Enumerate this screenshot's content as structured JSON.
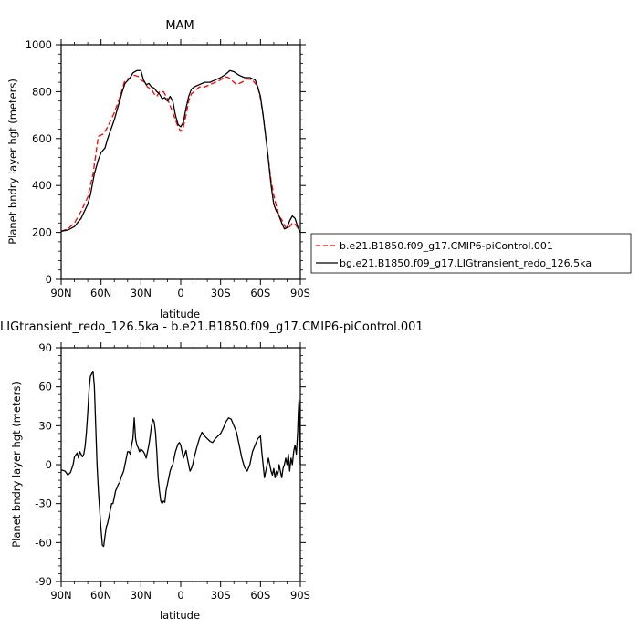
{
  "chart_data": [
    {
      "type": "line",
      "title": "MAM",
      "xlabel": "latitude",
      "ylabel": "Planet bndry layer hgt (meters)",
      "xlim": [
        90,
        -90
      ],
      "ylim": [
        0,
        1000
      ],
      "y_ticks": [
        0,
        200,
        400,
        600,
        800,
        1000
      ],
      "x_ticks": [
        90,
        60,
        30,
        0,
        -30,
        -60,
        -90
      ],
      "x_tick_labels": [
        "90N",
        "60N",
        "30N",
        "0",
        "30S",
        "60S",
        "90S"
      ],
      "grid": false,
      "legend_position": "right",
      "series": [
        {
          "name": "b.e21.B1850.f09_g17.CMIP6-piControl.001",
          "color": "#ff0000",
          "dash": "dashed",
          "x": [
            90,
            85,
            80,
            75,
            70,
            66,
            62,
            58,
            55,
            50,
            45,
            42,
            38,
            35,
            32,
            30,
            27,
            25,
            22,
            20,
            18,
            16,
            13,
            10,
            8,
            6,
            4,
            2,
            0,
            -2,
            -4,
            -6,
            -8,
            -10,
            -14,
            -18,
            -22,
            -26,
            -30,
            -33,
            -36,
            -38,
            -42,
            -46,
            -50,
            -54,
            -58,
            -60,
            -62,
            -65,
            -68,
            -70,
            -72,
            -74,
            -76,
            -78,
            -80,
            -82,
            -84,
            -86,
            -88,
            -90
          ],
          "y": [
            205,
            215,
            240,
            290,
            350,
            450,
            610,
            620,
            650,
            710,
            790,
            850,
            860,
            870,
            865,
            850,
            840,
            820,
            810,
            790,
            780,
            800,
            800,
            770,
            740,
            710,
            680,
            650,
            630,
            650,
            700,
            760,
            790,
            800,
            820,
            820,
            830,
            840,
            850,
            865,
            860,
            850,
            830,
            840,
            855,
            850,
            820,
            770,
            700,
            560,
            420,
            360,
            310,
            270,
            255,
            230,
            215,
            225,
            240,
            235,
            220,
            200
          ]
        },
        {
          "name": "bg.e21.B1850.f09_g17.LIGtransient_redo_126.5ka",
          "color": "#000000",
          "dash": "solid",
          "x": [
            90,
            85,
            80,
            75,
            70,
            68,
            65,
            62,
            60,
            57,
            55,
            50,
            47,
            44,
            42,
            38,
            36,
            33,
            30,
            28,
            26,
            24,
            22,
            20,
            18,
            16,
            14,
            12,
            10,
            8,
            6,
            4,
            2,
            0,
            -2,
            -4,
            -6,
            -8,
            -10,
            -14,
            -18,
            -22,
            -26,
            -30,
            -34,
            -37,
            -40,
            -44,
            -48,
            -52,
            -56,
            -58,
            -60,
            -62,
            -65,
            -68,
            -70,
            -72,
            -74,
            -76,
            -78,
            -80,
            -82,
            -84,
            -86,
            -88,
            -89,
            -90
          ],
          "y": [
            205,
            210,
            225,
            260,
            320,
            360,
            450,
            510,
            540,
            560,
            600,
            680,
            740,
            800,
            835,
            860,
            880,
            890,
            890,
            850,
            830,
            835,
            820,
            815,
            800,
            790,
            770,
            775,
            760,
            780,
            760,
            700,
            660,
            650,
            670,
            730,
            780,
            810,
            820,
            830,
            840,
            840,
            850,
            860,
            875,
            890,
            885,
            870,
            860,
            860,
            850,
            820,
            780,
            700,
            560,
            400,
            320,
            290,
            270,
            240,
            215,
            220,
            250,
            270,
            260,
            225,
            210,
            200
          ]
        }
      ]
    },
    {
      "type": "line",
      "title": "LIGtransient_redo_126.5ka - b.e21.B1850.f09_g17.CMIP6-piControl.001",
      "xlabel": "latitude",
      "ylabel": "Planet bndry layer hgt (meters)",
      "xlim": [
        90,
        -90
      ],
      "ylim": [
        -90,
        90
      ],
      "y_ticks": [
        -90,
        -60,
        -30,
        0,
        30,
        60,
        90
      ],
      "x_ticks": [
        90,
        60,
        30,
        0,
        -30,
        -60,
        -90
      ],
      "x_tick_labels": [
        "90N",
        "60N",
        "30N",
        "0",
        "30S",
        "60S",
        "90S"
      ],
      "grid": false,
      "series": [
        {
          "color": "#000000",
          "dash": "solid",
          "x": [
            90,
            87,
            85,
            83,
            81,
            80,
            78,
            77,
            76,
            74,
            73,
            72,
            71,
            70,
            69,
            68,
            67,
            66,
            65,
            64,
            63,
            62,
            61,
            60,
            59,
            58,
            57,
            56,
            55,
            54,
            53,
            52,
            51,
            50,
            49,
            48,
            47,
            46,
            45,
            43,
            42,
            41,
            40,
            39,
            38,
            37,
            36,
            35,
            34,
            33,
            32,
            31,
            30,
            29,
            28,
            27,
            26,
            25,
            24,
            23,
            22,
            21,
            20,
            19,
            18,
            17,
            16,
            15,
            14,
            13,
            12,
            11,
            10,
            9,
            8,
            7,
            6,
            5,
            4,
            3,
            2,
            1,
            0,
            -1,
            -2,
            -3,
            -4,
            -5,
            -6,
            -7,
            -8,
            -9,
            -10,
            -12,
            -14,
            -16,
            -18,
            -20,
            -22,
            -24,
            -26,
            -28,
            -30,
            -32,
            -34,
            -36,
            -38,
            -40,
            -42,
            -44,
            -46,
            -48,
            -50,
            -52,
            -54,
            -56,
            -58,
            -60,
            -61,
            -62,
            -63,
            -64,
            -65,
            -66,
            -67,
            -68,
            -69,
            -70,
            -71,
            -72,
            -73,
            -74,
            -75,
            -76,
            -77,
            -78,
            -79,
            -80,
            -81,
            -82,
            -83,
            -84,
            -85,
            -86,
            -87,
            -88,
            -88.5,
            -89,
            -89.5,
            -90
          ],
          "y": [
            -4,
            -5,
            -8,
            -6,
            0,
            6,
            9,
            5,
            10,
            6,
            8,
            14,
            25,
            40,
            58,
            68,
            70,
            72,
            60,
            30,
            0,
            -20,
            -35,
            -50,
            -62,
            -63,
            -55,
            -48,
            -45,
            -40,
            -35,
            -30,
            -30,
            -25,
            -20,
            -18,
            -15,
            -14,
            -10,
            -5,
            0,
            5,
            10,
            10,
            8,
            15,
            20,
            36,
            20,
            15,
            13,
            10,
            12,
            11,
            10,
            8,
            5,
            10,
            15,
            22,
            30,
            35,
            33,
            25,
            10,
            -10,
            -20,
            -28,
            -30,
            -28,
            -29,
            -20,
            -15,
            -10,
            -5,
            -2,
            0,
            5,
            10,
            13,
            16,
            17,
            15,
            10,
            5,
            8,
            11,
            5,
            0,
            -5,
            -3,
            0,
            5,
            13,
            20,
            25,
            22,
            20,
            18,
            17,
            20,
            22,
            24,
            28,
            33,
            36,
            35,
            30,
            25,
            15,
            5,
            -2,
            -5,
            0,
            10,
            15,
            20,
            22,
            10,
            0,
            -10,
            -5,
            0,
            5,
            0,
            -5,
            -8,
            -3,
            -10,
            -5,
            -8,
            0,
            -5,
            -10,
            -3,
            0,
            5,
            0,
            8,
            -5,
            5,
            0,
            10,
            15,
            8,
            25,
            40,
            50,
            35,
            0
          ]
        }
      ]
    }
  ],
  "legend": {
    "entries": [
      "b.e21.B1850.f09_g17.CMIP6-piControl.001",
      "bg.e21.B1850.f09_g17.LIGtransient_redo_126.5ka"
    ]
  }
}
